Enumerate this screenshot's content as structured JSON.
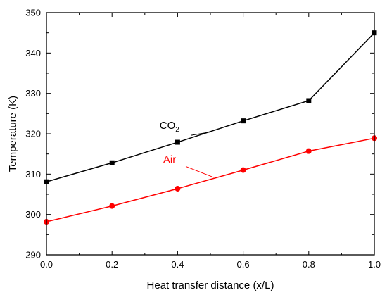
{
  "chart_data": {
    "type": "line",
    "title": "",
    "xlabel": "Heat transfer distance (x/L)",
    "ylabel": "Temperature (K)",
    "xlim": [
      0.0,
      1.0
    ],
    "ylim": [
      290,
      350
    ],
    "xticks": [
      "0.0",
      "0.2",
      "0.4",
      "0.6",
      "0.8",
      "1.0"
    ],
    "yticks": [
      "290",
      "300",
      "310",
      "320",
      "330",
      "340",
      "350"
    ],
    "grid": false,
    "series": [
      {
        "name": "CO2",
        "label_main": "CO",
        "label_sub": "2",
        "color": "#000000",
        "marker": "square",
        "x": [
          0.0,
          0.2,
          0.4,
          0.6,
          0.8,
          1.0
        ],
        "y": [
          308.1,
          312.8,
          317.9,
          323.2,
          328.2,
          345.0
        ]
      },
      {
        "name": "Air",
        "label_main": "Air",
        "label_sub": "",
        "color": "#ff0000",
        "marker": "circle",
        "x": [
          0.0,
          0.2,
          0.4,
          0.6,
          0.8,
          1.0
        ],
        "y": [
          298.2,
          302.1,
          306.4,
          311.0,
          315.7,
          318.9
        ]
      }
    ]
  }
}
